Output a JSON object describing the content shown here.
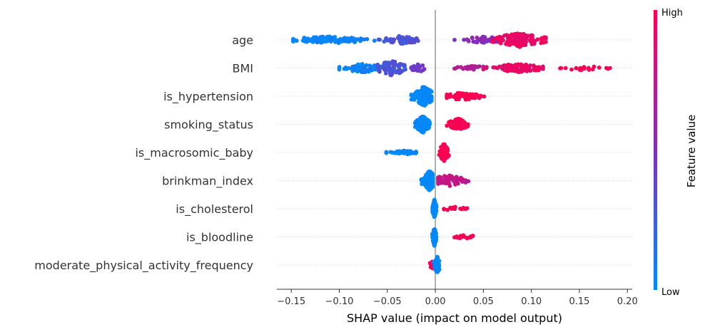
{
  "chart_data": {
    "type": "scatter",
    "subtype": "shap-beeswarm",
    "title": "",
    "xlabel": "SHAP value (impact on model output)",
    "ylabel": "",
    "xlim": [
      -0.165,
      0.205
    ],
    "x_ticks": [
      -0.15,
      -0.1,
      -0.05,
      0.0,
      0.05,
      0.1,
      0.15,
      0.2
    ],
    "x_tick_labels": [
      "−0.15",
      "−0.10",
      "−0.05",
      "0.00",
      "0.05",
      "0.10",
      "0.15",
      "0.20"
    ],
    "grid": false,
    "zero_line": true,
    "colorbar": {
      "title": "Feature value",
      "high_label": "High",
      "low_label": "Low",
      "low_color": "#008bfb",
      "mid_color": "#7e2fbf",
      "high_color": "#ff0051"
    },
    "features": [
      {
        "name": "age",
        "clusters": [
          {
            "x_range": [
              -0.148,
              -0.06
            ],
            "center": -0.11,
            "n": 110,
            "color_value": 0.03,
            "spread": 5
          },
          {
            "x_range": [
              -0.06,
              -0.018
            ],
            "center": -0.035,
            "n": 55,
            "color_value": 0.3,
            "spread": 6
          },
          {
            "x_range": [
              0.02,
              0.065
            ],
            "center": 0.05,
            "n": 45,
            "color_value": 0.55,
            "spread": 5
          },
          {
            "x_range": [
              0.06,
              0.115
            ],
            "center": 0.088,
            "n": 110,
            "color_value": 0.92,
            "spread": 10
          }
        ]
      },
      {
        "name": "BMI",
        "clusters": [
          {
            "x_range": [
              -0.1,
              -0.05
            ],
            "center": -0.075,
            "n": 65,
            "color_value": 0.05,
            "spread": 6
          },
          {
            "x_range": [
              -0.06,
              -0.025
            ],
            "center": -0.045,
            "n": 70,
            "color_value": 0.3,
            "spread": 11
          },
          {
            "x_range": [
              -0.025,
              -0.008
            ],
            "center": -0.018,
            "n": 25,
            "color_value": 0.45,
            "spread": 6
          },
          {
            "x_range": [
              0.02,
              0.06
            ],
            "center": 0.04,
            "n": 25,
            "color_value": 0.7,
            "spread": 3
          },
          {
            "x_range": [
              0.05,
              0.112
            ],
            "center": 0.085,
            "n": 90,
            "color_value": 0.9,
            "spread": 6
          },
          {
            "x_range": [
              0.13,
              0.187
            ],
            "center": 0.155,
            "n": 22,
            "color_value": 1.0,
            "spread": 3
          }
        ]
      },
      {
        "name": "is_hypertension",
        "clusters": [
          {
            "x_range": [
              -0.025,
              -0.004
            ],
            "center": -0.012,
            "n": 160,
            "color_value": 0.0,
            "spread": 14
          },
          {
            "x_range": [
              0.012,
              0.053
            ],
            "center": 0.028,
            "n": 70,
            "color_value": 1.0,
            "spread": 6
          }
        ]
      },
      {
        "name": "smoking_status",
        "clusters": [
          {
            "x_range": [
              -0.021,
              -0.006
            ],
            "center": -0.013,
            "n": 140,
            "color_value": 0.0,
            "spread": 12
          },
          {
            "x_range": [
              0.012,
              0.035
            ],
            "center": 0.024,
            "n": 75,
            "color_value": 1.0,
            "spread": 8
          }
        ]
      },
      {
        "name": "is_macrosomic_baby",
        "clusters": [
          {
            "x_range": [
              -0.051,
              -0.02
            ],
            "center": -0.03,
            "n": 45,
            "color_value": 0.0,
            "spread": 3
          },
          {
            "x_range": [
              0.004,
              0.014
            ],
            "center": 0.009,
            "n": 70,
            "color_value": 1.0,
            "spread": 13
          }
        ]
      },
      {
        "name": "brinkman_index",
        "clusters": [
          {
            "x_range": [
              -0.016,
              -0.003
            ],
            "center": -0.006,
            "n": 190,
            "color_value": 0.0,
            "spread": 14
          },
          {
            "x_range": [
              0.003,
              0.04
            ],
            "center": 0.014,
            "n": 65,
            "color_value": 0.75,
            "spread": 8
          }
        ]
      },
      {
        "name": "is_cholesterol",
        "clusters": [
          {
            "x_range": [
              -0.003,
              0.001
            ],
            "center": -0.001,
            "n": 120,
            "color_value": 0.0,
            "spread": 13
          },
          {
            "x_range": [
              0.009,
              0.035
            ],
            "center": 0.02,
            "n": 15,
            "color_value": 1.0,
            "spread": 3
          }
        ]
      },
      {
        "name": "is_bloodline",
        "clusters": [
          {
            "x_range": [
              -0.003,
              0.001
            ],
            "center": -0.001,
            "n": 120,
            "color_value": 0.0,
            "spread": 13
          },
          {
            "x_range": [
              0.02,
              0.042
            ],
            "center": 0.032,
            "n": 18,
            "color_value": 1.0,
            "spread": 3
          }
        ]
      },
      {
        "name": "moderate_physical_activity_frequency",
        "clusters": [
          {
            "x_range": [
              -0.007,
              -0.001
            ],
            "center": -0.004,
            "n": 20,
            "color_value": 1.0,
            "spread": 6
          },
          {
            "x_range": [
              -0.002,
              0.004
            ],
            "center": 0.002,
            "n": 90,
            "color_value": 0.0,
            "spread": 12
          }
        ]
      }
    ]
  }
}
